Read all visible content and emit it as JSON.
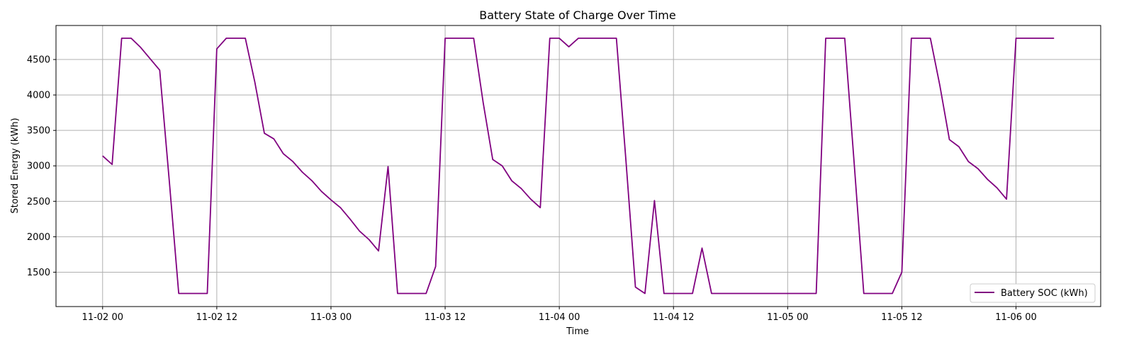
{
  "chart_data": {
    "type": "line",
    "title": "Battery State of Charge Over Time",
    "xlabel": "Time",
    "ylabel": "Stored Energy (kWh)",
    "series_color": "#800080",
    "grid": true,
    "legend_position": "lower-right",
    "ylim": [
      1015,
      4980
    ],
    "yticks": [
      1500,
      2000,
      2500,
      3000,
      3500,
      4000,
      4500
    ],
    "xlim_hours": [
      -4.9,
      104.9
    ],
    "xticks": [
      {
        "hour": 0,
        "label": "11-02 00"
      },
      {
        "hour": 12,
        "label": "11-02 12"
      },
      {
        "hour": 24,
        "label": "11-03 00"
      },
      {
        "hour": 36,
        "label": "11-03 12"
      },
      {
        "hour": 48,
        "label": "11-04 00"
      },
      {
        "hour": 60,
        "label": "11-04 12"
      },
      {
        "hour": 72,
        "label": "11-05 00"
      },
      {
        "hour": 84,
        "label": "11-05 12"
      },
      {
        "hour": 96,
        "label": "11-06 00"
      }
    ],
    "x_start": "11-02 00",
    "x_step_hours": 1,
    "series": [
      {
        "name": "Battery SOC (kWh)",
        "values": [
          3140,
          3020,
          4800,
          4800,
          4670,
          4510,
          4350,
          2800,
          1200,
          1200,
          1200,
          1200,
          4650,
          4800,
          4800,
          4800,
          4180,
          3460,
          3380,
          3170,
          3060,
          2910,
          2790,
          2640,
          2520,
          2410,
          2250,
          2080,
          1960,
          1800,
          2990,
          1200,
          1200,
          1200,
          1200,
          1580,
          4800,
          4800,
          4800,
          4800,
          3890,
          3090,
          3000,
          2790,
          2680,
          2530,
          2410,
          4800,
          4800,
          4680,
          4800,
          4800,
          4800,
          4800,
          4800,
          3080,
          1290,
          1200,
          2510,
          1200,
          1200,
          1200,
          1200,
          1840,
          1200,
          1200,
          1200,
          1200,
          1200,
          1200,
          1200,
          1200,
          1200,
          1200,
          1200,
          1200,
          4800,
          4800,
          4800,
          3020,
          1200,
          1200,
          1200,
          1200,
          1500,
          4800,
          4800,
          4800,
          4130,
          3370,
          3270,
          3060,
          2960,
          2810,
          2690,
          2530,
          4800,
          4800,
          4800,
          4800,
          4800
        ]
      }
    ]
  }
}
